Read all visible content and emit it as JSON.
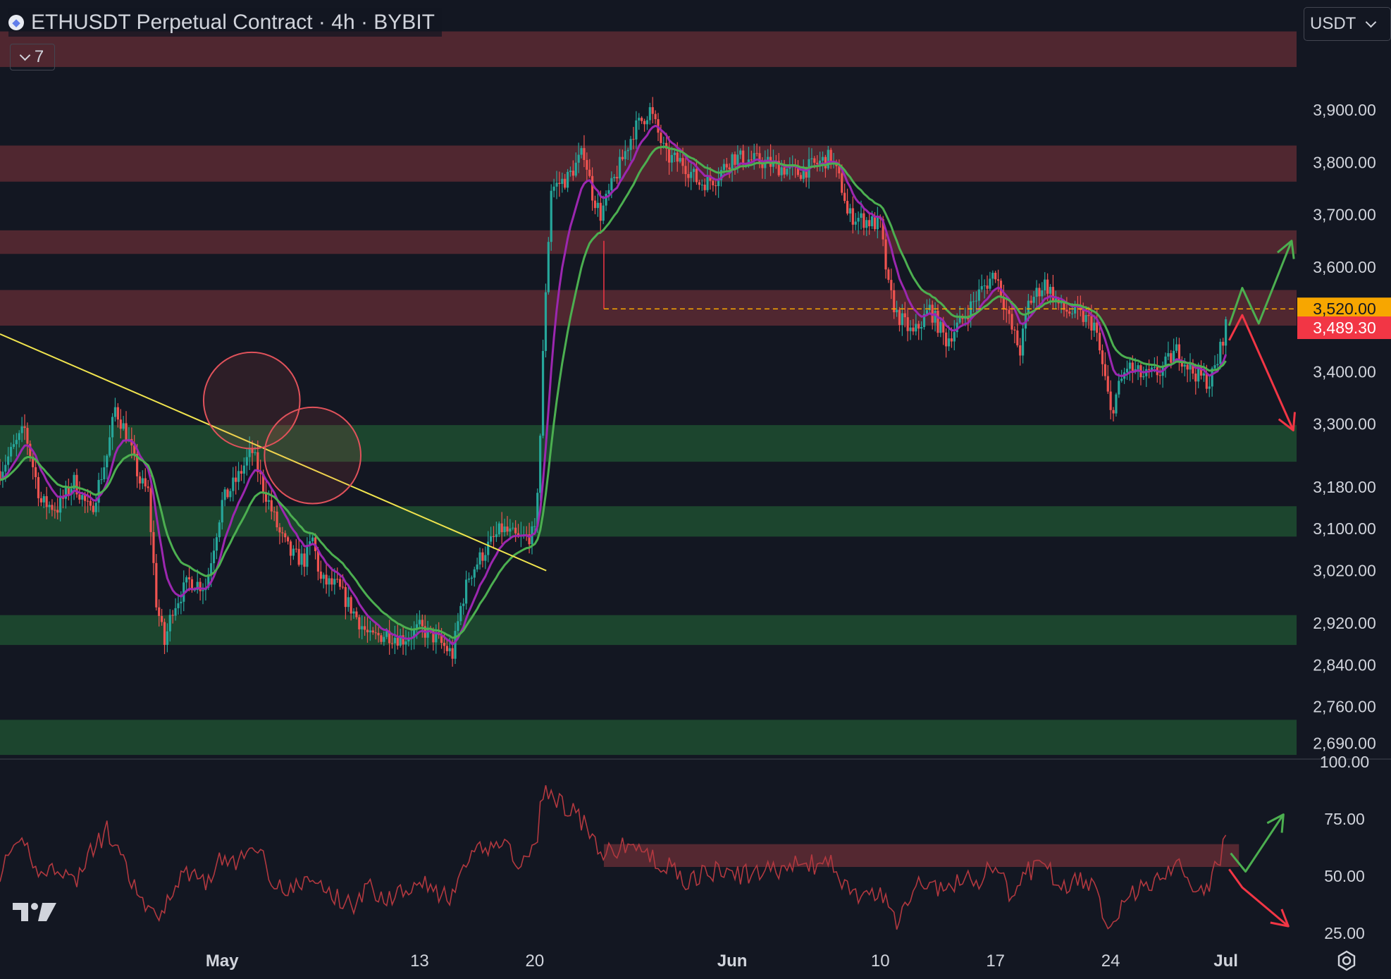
{
  "header": {
    "title": "ETHUSDT Perpetual Contract · 4h · BYBIT",
    "collapse_count": "7",
    "icon": "ethereum-coin-icon"
  },
  "currency_selector": {
    "value": "USDT"
  },
  "colors": {
    "background": "#131722",
    "up_candle": "#26a69a",
    "down_candle": "#ef5350",
    "resistance_zone": "#5c2a33",
    "support_zone": "#1e4a30",
    "trendline": "#f0e44e",
    "ma_fast": "#9c27b0",
    "ma_slow": "#4caf50",
    "last_price": "#f23645",
    "level_label": "#f7a600",
    "rsi_line": "#b2383f",
    "arrow_up": "#4caf50",
    "arrow_down": "#f23645"
  },
  "chart_data": [
    {
      "type": "candlestick",
      "title": "ETHUSDT Perpetual Contract · 4h · BYBIT",
      "y_axis": {
        "ticks": [
          "3,900.00",
          "3,800.00",
          "3,700.00",
          "3,600.00",
          "3,400.00",
          "3,300.00",
          "3,180.00",
          "3,100.00",
          "3,020.00",
          "2,920.00",
          "2,840.00",
          "2,760.00",
          "2,690.00"
        ],
        "tick_values": [
          3900,
          3800,
          3700,
          3600,
          3400,
          3300,
          3180,
          3100,
          3020,
          2920,
          2840,
          2760,
          2690
        ],
        "ylim": [
          2660,
          4110
        ]
      },
      "x_axis": {
        "ticks": [
          "May",
          "13",
          "20",
          "Jun",
          "10",
          "17",
          "24",
          "Jul"
        ],
        "tick_days": [
          1,
          13,
          20,
          32,
          41,
          48,
          55,
          62
        ],
        "xlim_days": [
          -12.5,
          66.3
        ]
      },
      "levels": {
        "key_level": {
          "value": 3520,
          "label": "3,520.00"
        },
        "last_price": {
          "value": 3489.3,
          "label": "3,489.30"
        }
      },
      "resistance_zones": [
        [
          3982,
          4050
        ],
        [
          3763,
          3832
        ],
        [
          3625,
          3670
        ],
        [
          3488,
          3556
        ]
      ],
      "support_zones": [
        [
          3228,
          3298
        ],
        [
          3085,
          3143
        ],
        [
          2878,
          2935
        ],
        [
          2668,
          2735
        ]
      ],
      "trendline": {
        "start": [
          -12.5,
          3472
        ],
        "end": [
          20.7,
          3020
        ]
      },
      "circles": [
        {
          "center": [
            2.8,
            3345
          ],
          "radius_price": 92
        },
        {
          "center": [
            6.5,
            3240
          ],
          "radius_price": 92
        }
      ],
      "anchors": [
        [
          -12.5,
          3210
        ],
        [
          -11,
          3290
        ],
        [
          -10,
          3150
        ],
        [
          -9,
          3140
        ],
        [
          -8,
          3190
        ],
        [
          -7,
          3130
        ],
        [
          -6,
          3240
        ],
        [
          -5.5,
          3330
        ],
        [
          -4.8,
          3280
        ],
        [
          -4,
          3190
        ],
        [
          -3.5,
          3170
        ],
        [
          -3,
          2960
        ],
        [
          -2.5,
          2880
        ],
        [
          -2,
          2950
        ],
        [
          -1,
          3000
        ],
        [
          0,
          2990
        ],
        [
          1,
          3150
        ],
        [
          2,
          3200
        ],
        [
          2.8,
          3250
        ],
        [
          3.5,
          3180
        ],
        [
          4.5,
          3090
        ],
        [
          5.2,
          3050
        ],
        [
          6,
          3040
        ],
        [
          6.5,
          3080
        ],
        [
          7,
          3000
        ],
        [
          8,
          2990
        ],
        [
          9,
          2940
        ],
        [
          10,
          2890
        ],
        [
          11,
          2900
        ],
        [
          12,
          2890
        ],
        [
          13,
          2910
        ],
        [
          14,
          2890
        ],
        [
          15,
          2860
        ],
        [
          15.5,
          2950
        ],
        [
          16,
          3010
        ],
        [
          17,
          3060
        ],
        [
          18,
          3100
        ],
        [
          19,
          3080
        ],
        [
          20,
          3090
        ],
        [
          20.3,
          3250
        ],
        [
          20.6,
          3520
        ],
        [
          21,
          3750
        ],
        [
          22,
          3770
        ],
        [
          23,
          3820
        ],
        [
          23.5,
          3740
        ],
        [
          24,
          3700
        ],
        [
          25,
          3780
        ],
        [
          26,
          3860
        ],
        [
          27,
          3900
        ],
        [
          28,
          3810
        ],
        [
          29,
          3800
        ],
        [
          30,
          3760
        ],
        [
          31,
          3770
        ],
        [
          32,
          3810
        ],
        [
          34,
          3800
        ],
        [
          36,
          3780
        ],
        [
          38,
          3810
        ],
        [
          38.8,
          3740
        ],
        [
          39,
          3700
        ],
        [
          40,
          3690
        ],
        [
          41,
          3680
        ],
        [
          41.5,
          3560
        ],
        [
          42,
          3510
        ],
        [
          43,
          3470
        ],
        [
          44,
          3520
        ],
        [
          45,
          3460
        ],
        [
          46,
          3500
        ],
        [
          47,
          3550
        ],
        [
          48,
          3590
        ],
        [
          49,
          3480
        ],
        [
          49.5,
          3440
        ],
        [
          50,
          3530
        ],
        [
          51,
          3570
        ],
        [
          52,
          3520
        ],
        [
          53,
          3510
        ],
        [
          54,
          3490
        ],
        [
          54.7,
          3380
        ],
        [
          55,
          3320
        ],
        [
          55.5,
          3370
        ],
        [
          56,
          3410
        ],
        [
          57,
          3390
        ],
        [
          58,
          3400
        ],
        [
          59,
          3440
        ],
        [
          60,
          3400
        ],
        [
          61,
          3380
        ],
        [
          61.5,
          3420
        ],
        [
          62,
          3489.3
        ]
      ],
      "projection_up": [
        [
          62.2,
          3488
        ],
        [
          63,
          3560
        ],
        [
          64,
          3492
        ],
        [
          66,
          3650
        ]
      ],
      "projection_down": [
        [
          62.2,
          3460
        ],
        [
          63,
          3508
        ],
        [
          66.1,
          3288
        ]
      ]
    },
    {
      "type": "line",
      "title": "",
      "y_axis": {
        "ticks": [
          "100.00",
          "75.00",
          "50.00",
          "25.00"
        ],
        "tick_values": [
          100,
          75,
          50,
          25
        ],
        "ylim": [
          20,
          101
        ]
      },
      "x_axis": {
        "xlim_days": [
          -12.5,
          66.3
        ]
      },
      "zone": {
        "x_range": [
          24.2,
          62.8
        ],
        "y_range": [
          54,
          64
        ]
      },
      "anchors": [
        [
          -12.5,
          52
        ],
        [
          -11,
          65
        ],
        [
          -10,
          50
        ],
        [
          -9,
          55
        ],
        [
          -8,
          47
        ],
        [
          -7,
          60
        ],
        [
          -6,
          70
        ],
        [
          -5,
          55
        ],
        [
          -4,
          40
        ],
        [
          -3,
          30
        ],
        [
          -2,
          45
        ],
        [
          -1,
          52
        ],
        [
          0,
          48
        ],
        [
          1,
          58
        ],
        [
          2,
          55
        ],
        [
          3,
          65
        ],
        [
          4,
          50
        ],
        [
          5,
          42
        ],
        [
          6,
          48
        ],
        [
          7,
          46
        ],
        [
          8,
          40
        ],
        [
          9,
          38
        ],
        [
          10,
          45
        ],
        [
          11,
          40
        ],
        [
          12,
          44
        ],
        [
          13,
          50
        ],
        [
          14,
          42
        ],
        [
          15,
          40
        ],
        [
          16,
          58
        ],
        [
          17,
          62
        ],
        [
          18,
          66
        ],
        [
          19,
          55
        ],
        [
          20,
          60
        ],
        [
          20.5,
          88
        ],
        [
          21,
          85
        ],
        [
          22,
          80
        ],
        [
          23,
          73
        ],
        [
          24,
          58
        ],
        [
          25,
          62
        ],
        [
          26,
          64
        ],
        [
          27,
          58
        ],
        [
          28,
          55
        ],
        [
          29,
          48
        ],
        [
          30,
          50
        ],
        [
          31,
          52
        ],
        [
          32,
          50
        ],
        [
          34,
          52
        ],
        [
          36,
          55
        ],
        [
          38,
          55
        ],
        [
          39,
          45
        ],
        [
          40,
          40
        ],
        [
          41,
          42
        ],
        [
          42,
          30
        ],
        [
          43,
          45
        ],
        [
          44,
          48
        ],
        [
          45,
          42
        ],
        [
          46,
          50
        ],
        [
          47,
          48
        ],
        [
          48,
          55
        ],
        [
          49,
          40
        ],
        [
          50,
          52
        ],
        [
          51,
          55
        ],
        [
          52,
          46
        ],
        [
          53,
          48
        ],
        [
          54,
          44
        ],
        [
          55,
          28
        ],
        [
          56,
          42
        ],
        [
          57,
          45
        ],
        [
          58,
          50
        ],
        [
          59,
          55
        ],
        [
          60,
          47
        ],
        [
          61,
          45
        ],
        [
          62,
          66
        ]
      ],
      "projection_up": [
        [
          62.3,
          60
        ],
        [
          63.2,
          52
        ],
        [
          65.5,
          77
        ]
      ],
      "projection_down": [
        [
          62.2,
          53
        ],
        [
          63,
          45
        ],
        [
          65.8,
          28
        ]
      ]
    }
  ]
}
